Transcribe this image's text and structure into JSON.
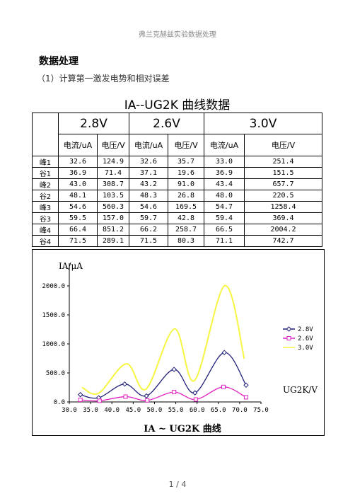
{
  "header": "弗兰克赫兹实验数据处理",
  "heading": "数据处理",
  "subheading": "（1）计算第一激发电势和相对误差",
  "table": {
    "title": "IA--UG2K 曲线数据",
    "groups": [
      "2.8V",
      "2.6V",
      "3.0V"
    ],
    "subheaders": [
      "电流/uA",
      "电压/V",
      "电流/uA",
      "电压/V",
      "电流/uA",
      "电压/V"
    ],
    "rows": [
      [
        "峰1",
        "32.6",
        "124.9",
        "32.6",
        "35.7",
        "33.0",
        "251.4"
      ],
      [
        "谷1",
        "36.9",
        "71.4",
        "37.1",
        "19.6",
        "36.9",
        "151.5"
      ],
      [
        "峰2",
        "43.0",
        "308.7",
        "43.2",
        "91.0",
        "43.4",
        "657.7"
      ],
      [
        "谷2",
        "48.1",
        "103.5",
        "48.3",
        "26.8",
        "48.0",
        "220.5"
      ],
      [
        "峰3",
        "54.6",
        "560.3",
        "54.6",
        "169.5",
        "54.7",
        "1258.4"
      ],
      [
        "谷3",
        "59.5",
        "157.0",
        "59.7",
        "42.8",
        "59.4",
        "369.4"
      ],
      [
        "峰4",
        "66.4",
        "851.2",
        "66.2",
        "258.7",
        "66.5",
        "2004.2"
      ],
      [
        "谷4",
        "71.5",
        "289.1",
        "71.5",
        "80.3",
        "71.1",
        "742.7"
      ]
    ]
  },
  "chart_data": {
    "type": "line",
    "title": "IA ~ UG2K 曲线",
    "y_label": "IA/μA",
    "x_label": "UG2K/V",
    "series": [
      {
        "name": "2.8V",
        "color": "#1f1f7a",
        "marker": "diamond",
        "x": [
          32.6,
          36.9,
          43.0,
          48.1,
          54.6,
          59.5,
          66.4,
          71.5
        ],
        "values": [
          124.9,
          71.4,
          308.7,
          103.5,
          560.3,
          157.0,
          851.2,
          289.1
        ]
      },
      {
        "name": "2.6V",
        "color": "#e020c0",
        "marker": "square",
        "x": [
          32.6,
          37.1,
          43.2,
          48.3,
          54.6,
          59.7,
          66.2,
          71.5
        ],
        "values": [
          35.7,
          19.6,
          91.0,
          26.8,
          169.5,
          42.8,
          258.7,
          80.3
        ]
      },
      {
        "name": "3.0V",
        "color": "#f5f542",
        "marker": "none",
        "x": [
          33.0,
          36.9,
          43.4,
          48.0,
          54.7,
          59.4,
          66.5,
          71.1
        ],
        "values": [
          251.4,
          151.5,
          657.7,
          220.5,
          1258.4,
          369.4,
          2004.2,
          742.7
        ]
      }
    ],
    "xlim": [
      30,
      75
    ],
    "ylim": [
      0,
      2000
    ],
    "xticks": [
      {
        "value": 30,
        "label": "30.0"
      },
      {
        "value": 35,
        "label": "35.0"
      },
      {
        "value": 40,
        "label": "40.0"
      },
      {
        "value": 45,
        "label": "45.0"
      },
      {
        "value": 50,
        "label": "50.0"
      },
      {
        "value": 55,
        "label": "55.0"
      },
      {
        "value": 60,
        "label": "60.0"
      },
      {
        "value": 65,
        "label": "65.0"
      },
      {
        "value": 70,
        "label": "70.0"
      },
      {
        "value": 75,
        "label": "75.0"
      }
    ],
    "yticks": [
      {
        "value": 0,
        "label": "0.0"
      },
      {
        "value": 500,
        "label": "500.0"
      },
      {
        "value": 1000,
        "label": "1000.0"
      },
      {
        "value": 1500,
        "label": "1500.0"
      },
      {
        "value": 2000,
        "label": "2000.0"
      }
    ],
    "legend": "right"
  },
  "footer": "1 / 4"
}
